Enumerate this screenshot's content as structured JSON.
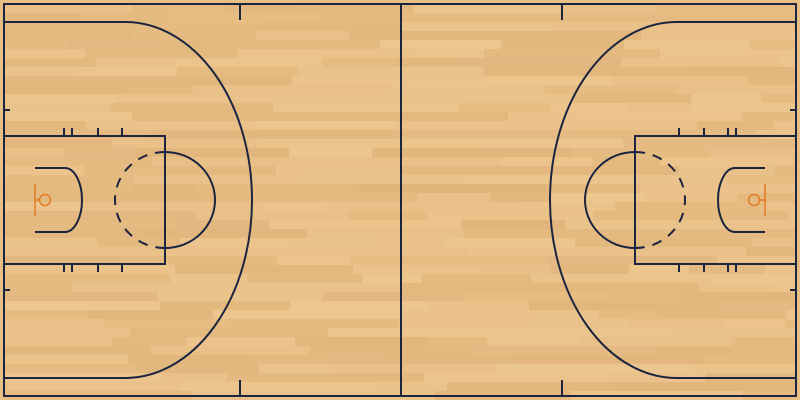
{
  "court": {
    "type": "basketball-full-court",
    "floor_color": "#e8bf86",
    "floor_grain_colors": [
      "#f2d09b",
      "#deb077",
      "#efc893",
      "#d9aa6f"
    ],
    "line_color": "#1b2540",
    "hoop_color": "#e07b22"
  }
}
